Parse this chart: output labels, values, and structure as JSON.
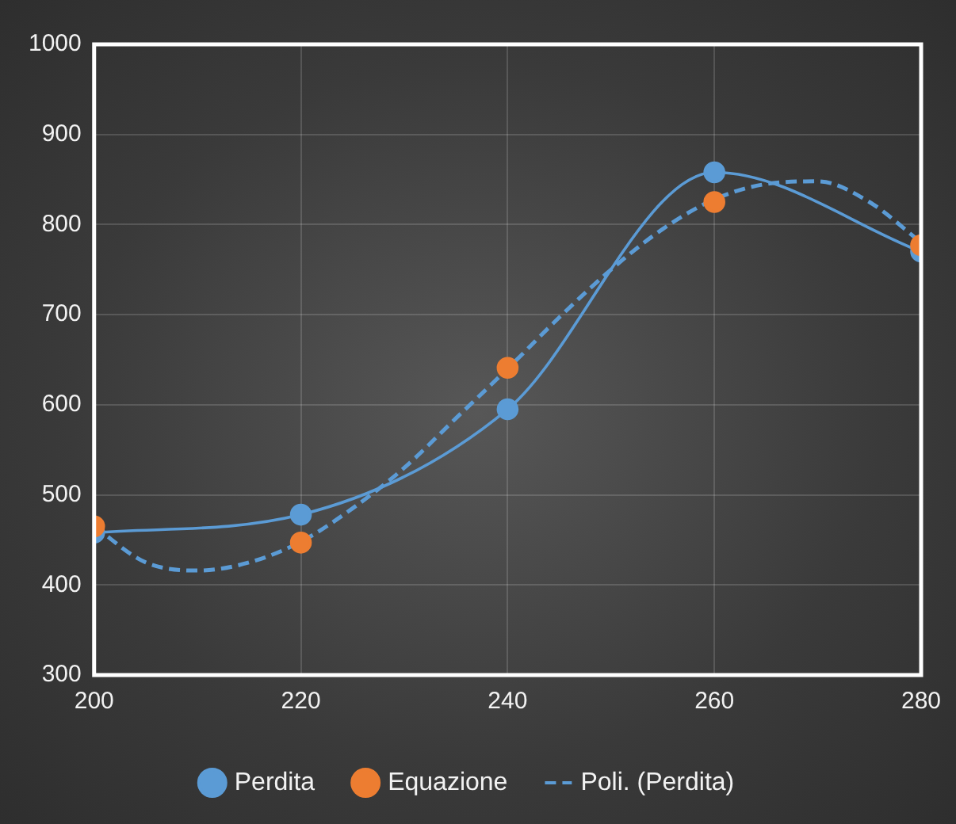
{
  "chart_data": {
    "type": "line",
    "xlim": [
      200,
      280
    ],
    "xticks": [
      200,
      220,
      240,
      260,
      280
    ],
    "ylim": [
      300,
      1000
    ],
    "yticks": [
      300,
      400,
      500,
      600,
      700,
      800,
      900,
      1000
    ],
    "grid": true,
    "legend": "bottom",
    "marker": "circle",
    "series": [
      {
        "name": "Perdita",
        "color": "#5b9bd5",
        "x": [
          200,
          220,
          240,
          260,
          280
        ],
        "values": [
          458,
          478,
          595,
          858,
          770
        ]
      },
      {
        "name": "Equazione",
        "type": "scatter",
        "color": "#ed7d31",
        "x": [
          200,
          220,
          240,
          260,
          280
        ],
        "values": [
          465,
          447,
          641,
          825,
          777
        ]
      },
      {
        "name": "Poli. (Perdita)",
        "color": "#5b9bd5",
        "marker": "none",
        "line_style": "dashed",
        "x": [
          200,
          205,
          210,
          215,
          220,
          225,
          230,
          235,
          240,
          245,
          250,
          255,
          260,
          265,
          270,
          275,
          280
        ],
        "values": [
          465,
          425,
          416,
          425,
          448,
          485,
          530,
          585,
          640,
          697,
          750,
          795,
          828,
          845,
          848,
          825,
          780
        ]
      }
    ]
  }
}
